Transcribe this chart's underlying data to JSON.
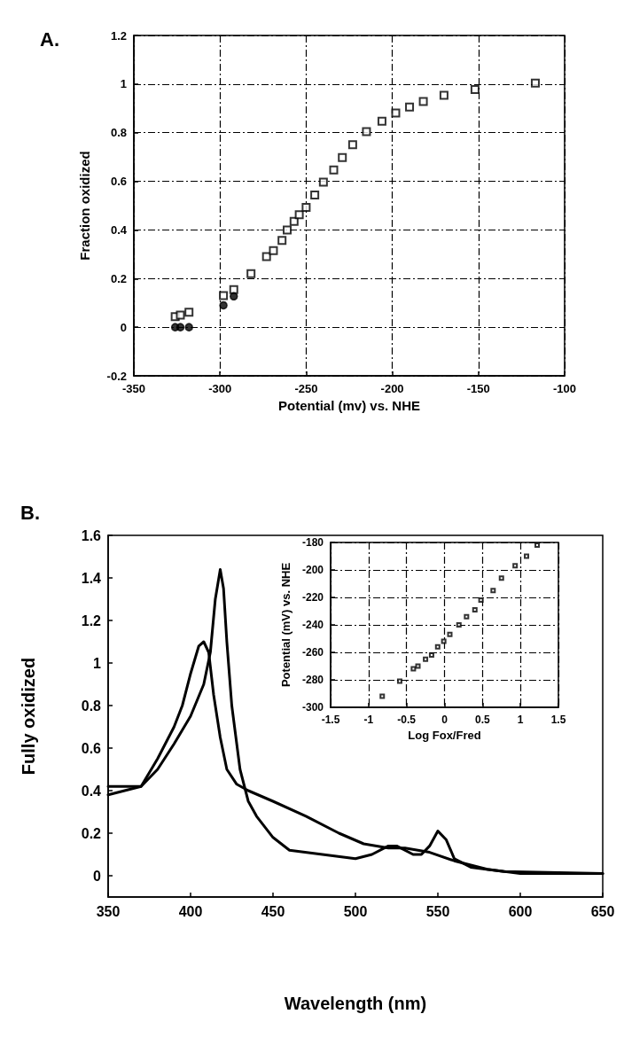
{
  "chart_data": [
    {
      "type": "scatter",
      "title": "A.",
      "xlabel": "Potential (mv) vs. NHE",
      "ylabel": "Fraction oxidized",
      "xlim": [
        -350,
        -100
      ],
      "xticks": [
        -350,
        -300,
        -250,
        -200,
        -150,
        -100
      ],
      "ylim": [
        -0.2,
        1.2
      ],
      "yticks": [
        -0.2,
        0,
        0.2,
        0.4,
        0.6,
        0.8,
        1,
        1.2
      ],
      "grid": true,
      "series": [
        {
          "color": "#000000",
          "marker": "square",
          "x": [
            -326,
            -323,
            -318,
            -298,
            -292,
            -282,
            -273,
            -269,
            -264,
            -261,
            -257,
            -254,
            -250,
            -245,
            -240,
            -234,
            -229,
            -223,
            -215,
            -206,
            -198,
            -190,
            -182,
            -170,
            -152,
            -117
          ],
          "values": [
            0.043,
            0.05,
            0.062,
            0.13,
            0.155,
            0.22,
            0.29,
            0.315,
            0.357,
            0.4,
            0.435,
            0.463,
            0.493,
            0.544,
            0.597,
            0.647,
            0.698,
            0.751,
            0.804,
            0.847,
            0.881,
            0.906,
            0.928,
            0.954,
            0.978,
            1.004
          ]
        },
        {
          "color": "#000000",
          "marker": "circle",
          "x": [
            -326,
            -323,
            -318,
            -298,
            -292
          ],
          "values": [
            0,
            0,
            0,
            0.09,
            0.127
          ]
        }
      ]
    },
    {
      "type": "line",
      "title": "B.",
      "xlabel": "Wavelength (nm)",
      "ylabel": "Fully oxidized",
      "xlim": [
        350,
        650
      ],
      "xticks": [
        350,
        400,
        450,
        500,
        550,
        600,
        650
      ],
      "ylim": [
        -0.1,
        1.6
      ],
      "yticks": [
        0,
        0.2,
        0.4,
        0.6,
        0.8,
        1,
        1.2,
        1.4,
        1.6
      ],
      "grid": false,
      "marker": "none",
      "line_style": "solid",
      "series": [
        {
          "color": "#000000",
          "x": [
            350,
            360,
            370,
            380,
            390,
            395,
            400,
            405,
            408,
            411,
            414,
            418,
            422,
            428,
            435,
            450,
            470,
            490,
            505,
            520,
            530,
            545,
            560,
            580,
            600,
            650
          ],
          "values": [
            0.42,
            0.42,
            0.42,
            0.55,
            0.7,
            0.8,
            0.95,
            1.08,
            1.1,
            1.05,
            0.85,
            0.65,
            0.5,
            0.43,
            0.4,
            0.35,
            0.28,
            0.2,
            0.15,
            0.13,
            0.13,
            0.11,
            0.07,
            0.03,
            0.01,
            0.01
          ]
        },
        {
          "color": "#000000",
          "x": [
            350,
            370,
            380,
            390,
            400,
            408,
            412,
            415,
            418,
            420,
            422,
            425,
            430,
            435,
            440,
            450,
            460,
            480,
            500,
            510,
            520,
            525,
            535,
            540,
            545,
            550,
            555,
            560,
            570,
            590,
            650
          ],
          "values": [
            0.38,
            0.42,
            0.5,
            0.62,
            0.75,
            0.9,
            1.05,
            1.3,
            1.44,
            1.35,
            1.1,
            0.8,
            0.5,
            0.35,
            0.28,
            0.18,
            0.12,
            0.1,
            0.08,
            0.1,
            0.14,
            0.14,
            0.1,
            0.1,
            0.14,
            0.21,
            0.17,
            0.08,
            0.04,
            0.02,
            0.01
          ]
        }
      ]
    },
    {
      "type": "scatter",
      "xlabel": "Log Fox/Fred",
      "ylabel": "Potential (mV) vs. NHE",
      "xlim": [
        -1.5,
        1.5
      ],
      "xticks": [
        -1.5,
        -1,
        -0.5,
        0,
        0.5,
        1,
        1.5
      ],
      "ylim": [
        -300,
        -180
      ],
      "yticks": [
        -300,
        -280,
        -260,
        -240,
        -220,
        -200,
        -180
      ],
      "grid": true,
      "marker": "square",
      "series": [
        {
          "color": "#000000",
          "x": [
            -0.82,
            -0.59,
            -0.41,
            -0.35,
            -0.25,
            -0.17,
            -0.09,
            -0.01,
            0.07,
            0.19,
            0.29,
            0.4,
            0.48,
            0.64,
            0.75,
            0.93,
            1.08,
            1.22
          ],
          "values": [
            -292,
            -281,
            -272,
            -270,
            -265,
            -262,
            -256,
            -252,
            -247,
            -240,
            -234,
            -229,
            -222,
            -215,
            -206,
            -197,
            -190,
            -182
          ]
        }
      ]
    }
  ]
}
